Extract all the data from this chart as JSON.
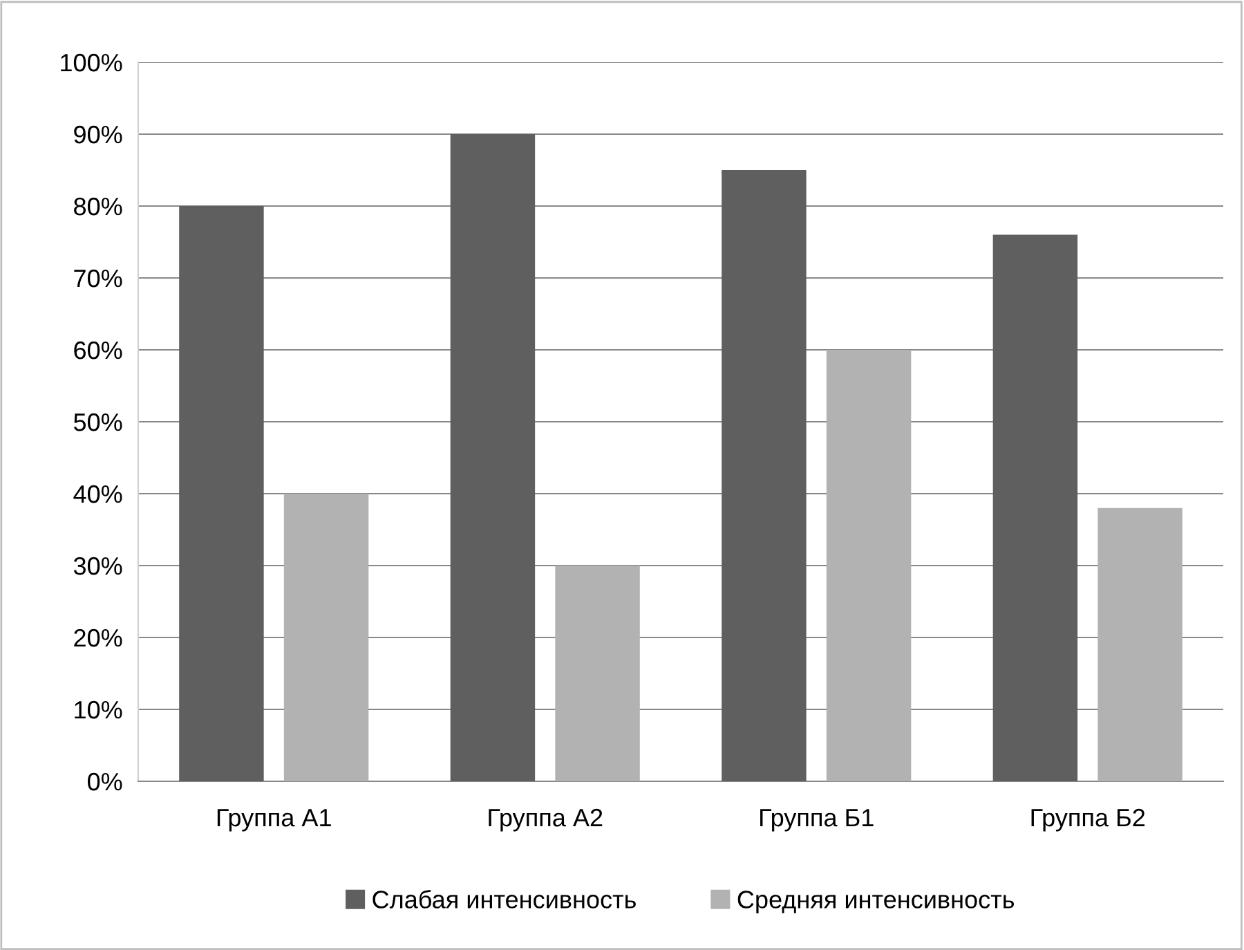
{
  "chart_data": {
    "type": "bar",
    "categories": [
      "Группа А1",
      "Группа А2",
      "Группа Б1",
      "Группа Б2"
    ],
    "series": [
      {
        "name": "Слабая интенсивность",
        "color": "#5f5f5f",
        "values": [
          80,
          90,
          85,
          76
        ]
      },
      {
        "name": "Средняя интенсивность",
        "color": "#b2b2b2",
        "values": [
          40,
          30,
          60,
          38
        ]
      }
    ],
    "ylim": [
      0,
      100
    ],
    "yticks": [
      {
        "value": 0,
        "label": "0%"
      },
      {
        "value": 10,
        "label": "10%"
      },
      {
        "value": 20,
        "label": "20%"
      },
      {
        "value": 30,
        "label": "30%"
      },
      {
        "value": 40,
        "label": "40%"
      },
      {
        "value": 50,
        "label": "50%"
      },
      {
        "value": 60,
        "label": "60%"
      },
      {
        "value": 70,
        "label": "70%"
      },
      {
        "value": 80,
        "label": "80%"
      },
      {
        "value": 90,
        "label": "90%"
      },
      {
        "value": 100,
        "label": "100%"
      }
    ],
    "grid": "y",
    "legend": "bottom"
  }
}
